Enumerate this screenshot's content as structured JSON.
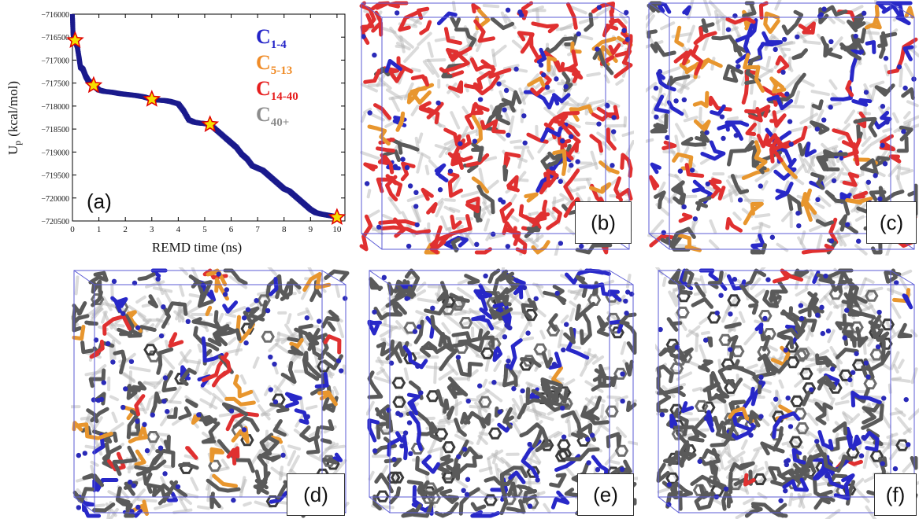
{
  "chart_data": {
    "type": "scatter",
    "xlabel": "REMD time (ns)",
    "ylabel": "U",
    "ylabel_sub": "p",
    "ylabel_unit": "(kcal/mol)",
    "xlim": [
      0,
      10.3
    ],
    "ylim": [
      -720500,
      -716000
    ],
    "xticks": [
      "0",
      "1",
      "2",
      "3",
      "4",
      "5",
      "6",
      "7",
      "8",
      "9",
      "10"
    ],
    "yticks": [
      "−716000",
      "−716500",
      "−717000",
      "−717500",
      "−718000",
      "−718500",
      "−719000",
      "−719500",
      "−720000",
      "−720500"
    ],
    "inset_label": "(a)",
    "marker_color": "#1a1a8c",
    "star_fill": "#f5e000",
    "star_stroke": "#e00000",
    "series": [
      {
        "points": [
          [
            0.0,
            -716050
          ],
          [
            0.02,
            -716400
          ],
          [
            0.05,
            -716560
          ],
          [
            0.1,
            -716570
          ],
          [
            0.18,
            -716700
          ],
          [
            0.25,
            -716950
          ],
          [
            0.3,
            -717150
          ],
          [
            0.4,
            -717200
          ],
          [
            0.5,
            -717350
          ],
          [
            0.6,
            -717450
          ],
          [
            0.7,
            -717500
          ],
          [
            0.8,
            -717550
          ],
          [
            0.9,
            -717600
          ],
          [
            1.0,
            -717650
          ],
          [
            1.2,
            -717680
          ],
          [
            1.5,
            -717700
          ],
          [
            1.8,
            -717730
          ],
          [
            2.1,
            -717750
          ],
          [
            2.4,
            -717770
          ],
          [
            2.7,
            -717800
          ],
          [
            3.0,
            -717850
          ],
          [
            3.2,
            -717870
          ],
          [
            3.5,
            -717880
          ],
          [
            3.7,
            -717900
          ],
          [
            4.0,
            -717950
          ],
          [
            4.2,
            -718100
          ],
          [
            4.4,
            -718300
          ],
          [
            4.6,
            -718350
          ],
          [
            4.8,
            -718370
          ],
          [
            5.0,
            -718380
          ],
          [
            5.2,
            -718400
          ],
          [
            5.5,
            -718550
          ],
          [
            5.8,
            -718700
          ],
          [
            6.0,
            -718800
          ],
          [
            6.2,
            -718900
          ],
          [
            6.4,
            -719050
          ],
          [
            6.6,
            -719150
          ],
          [
            6.8,
            -719300
          ],
          [
            7.0,
            -719350
          ],
          [
            7.2,
            -719400
          ],
          [
            7.4,
            -719500
          ],
          [
            7.6,
            -719600
          ],
          [
            7.8,
            -719700
          ],
          [
            8.0,
            -719800
          ],
          [
            8.2,
            -719850
          ],
          [
            8.4,
            -719950
          ],
          [
            8.6,
            -720050
          ],
          [
            8.8,
            -720150
          ],
          [
            9.0,
            -720250
          ],
          [
            9.2,
            -720320
          ],
          [
            9.4,
            -720350
          ],
          [
            9.6,
            -720370
          ],
          [
            9.8,
            -720390
          ],
          [
            10.0,
            -720420
          ]
        ]
      }
    ],
    "stars": [
      [
        0.1,
        -716570
      ],
      [
        0.8,
        -717550
      ],
      [
        3.0,
        -717850
      ],
      [
        5.2,
        -718400
      ],
      [
        10.0,
        -720420
      ]
    ],
    "legend": [
      {
        "main": "C",
        "sub": "1-4",
        "color": "#2323c8"
      },
      {
        "main": "C",
        "sub": "5-13",
        "color": "#f08c28"
      },
      {
        "main": "C",
        "sub": "14-40",
        "color": "#e61e1e"
      },
      {
        "main": "C",
        "sub": "40+",
        "color": "#8c8c8c"
      }
    ]
  },
  "panels": [
    {
      "label": "(b)",
      "atoms": {
        "red": 0.55,
        "orange": 0.15,
        "blue": 0.1,
        "gray": 0.2
      }
    },
    {
      "label": "(c)",
      "atoms": {
        "red": 0.3,
        "orange": 0.15,
        "blue": 0.15,
        "gray": 0.4
      }
    },
    {
      "label": "(d)",
      "atoms": {
        "red": 0.08,
        "orange": 0.12,
        "blue": 0.15,
        "gray": 0.65
      }
    },
    {
      "label": "(e)",
      "atoms": {
        "red": 0.0,
        "orange": 0.02,
        "blue": 0.18,
        "gray": 0.8
      }
    },
    {
      "label": "(f)",
      "atoms": {
        "red": 0.02,
        "orange": 0.02,
        "blue": 0.2,
        "gray": 0.76
      }
    }
  ]
}
